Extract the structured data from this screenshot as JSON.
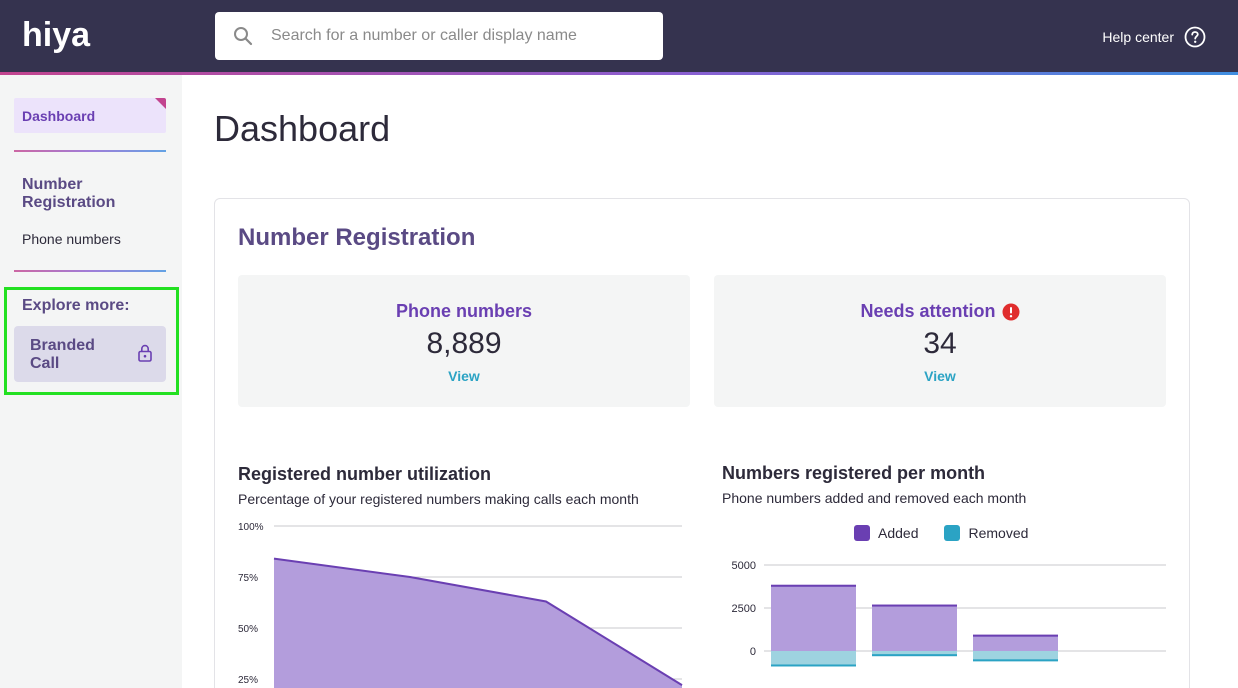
{
  "header": {
    "logo_text": "hiya",
    "search_placeholder": "Search for a number or caller display name",
    "help_label": "Help center"
  },
  "sidebar": {
    "dashboard_label": "Dashboard",
    "section_title": "Number Registration",
    "phone_numbers_label": "Phone numbers",
    "explore_title": "Explore more:",
    "branded_call_label": "Branded Call"
  },
  "main": {
    "page_title": "Dashboard",
    "card_title": "Number Registration",
    "stats": [
      {
        "label": "Phone numbers",
        "value": "8,889",
        "link": "View"
      },
      {
        "label": "Needs attention",
        "value": "34",
        "link": "View"
      }
    ]
  },
  "colors": {
    "accent": "#6a3fb2",
    "area_fill": "#b39ddc",
    "added": "#6a3fb2",
    "added_fill": "#b39ddc",
    "removed": "#2ba3c4",
    "removed_fill": "#9ed3e0",
    "alert": "#e02d2d"
  },
  "chart_data": [
    {
      "type": "area",
      "title": "Registered number utilization",
      "subtitle": "Percentage of your registered numbers making calls each month",
      "y_ticks": [
        "100%",
        "75%",
        "50%",
        "25%"
      ],
      "ylim": [
        0,
        100
      ],
      "values": [
        84,
        75,
        63,
        22
      ],
      "grid": true
    },
    {
      "type": "bar",
      "title": "Numbers registered per month",
      "subtitle": "Phone numbers added and removed each month",
      "legend": [
        "Added",
        "Removed"
      ],
      "legend_position": "top",
      "y_ticks": [
        "5000",
        "2500",
        "0"
      ],
      "ylim": [
        -1500,
        5000
      ],
      "series": [
        {
          "name": "Added",
          "values": [
            3850,
            2700,
            950,
            0
          ]
        },
        {
          "name": "Removed",
          "values": [
            -900,
            -300,
            -600,
            0
          ]
        }
      ],
      "grid": true
    }
  ]
}
